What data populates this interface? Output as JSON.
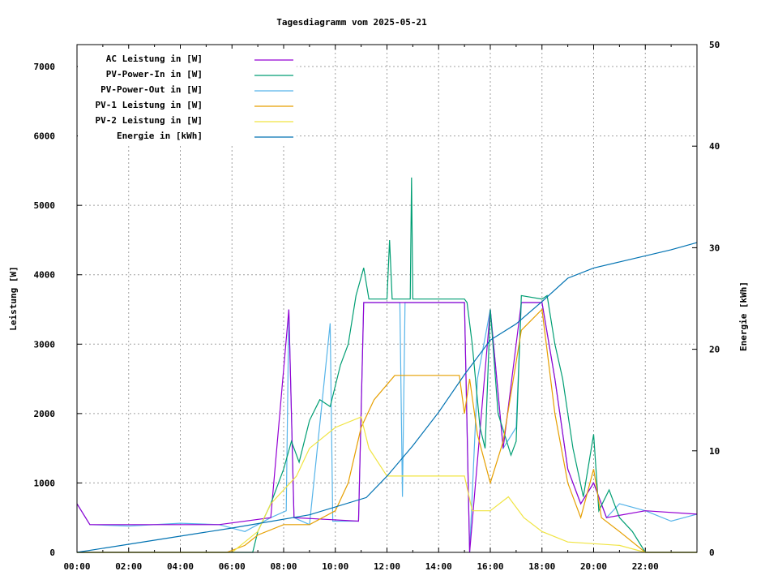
{
  "chart_data": {
    "type": "line",
    "title": "Tagesdiagramm vom 2025-05-21",
    "ylabel": "Leistung [W]",
    "y2label": "Energie [kWh]",
    "xlim": [
      "00:00",
      "24:00"
    ],
    "ylim": [
      0,
      7316
    ],
    "y2lim": [
      0,
      50
    ],
    "grid": true,
    "legend_position": "top-left",
    "xticks": [
      "00:00",
      "02:00",
      "04:00",
      "06:00",
      "08:00",
      "10:00",
      "12:00",
      "14:00",
      "16:00",
      "18:00",
      "20:00",
      "22:00"
    ],
    "yticks": [
      0,
      1000,
      2000,
      3000,
      4000,
      5000,
      6000,
      7000
    ],
    "y2ticks": [
      0,
      10,
      20,
      30,
      40,
      50
    ],
    "series": [
      {
        "name": "AC Leistung in [W]",
        "color": "#9400d3",
        "axis": "y",
        "points": [
          [
            0,
            700
          ],
          [
            0.5,
            400
          ],
          [
            5.5,
            400
          ],
          [
            7.5,
            500
          ],
          [
            8.2,
            3500
          ],
          [
            8.4,
            500
          ],
          [
            10.9,
            450
          ],
          [
            11.1,
            3600
          ],
          [
            15,
            3600
          ],
          [
            15.2,
            0
          ],
          [
            16,
            3500
          ],
          [
            16.5,
            1500
          ],
          [
            17.2,
            3600
          ],
          [
            18,
            3600
          ],
          [
            18.5,
            2500
          ],
          [
            19,
            1200
          ],
          [
            19.5,
            700
          ],
          [
            20,
            1000
          ],
          [
            20.5,
            500
          ],
          [
            22,
            600
          ],
          [
            24,
            550
          ]
        ]
      },
      {
        "name": "PV-Power-In in [W]",
        "color": "#009e73",
        "axis": "y",
        "points": [
          [
            0,
            0
          ],
          [
            6.8,
            0
          ],
          [
            7,
            300
          ],
          [
            7.5,
            700
          ],
          [
            8,
            1200
          ],
          [
            8.3,
            1600
          ],
          [
            8.6,
            1300
          ],
          [
            9,
            1900
          ],
          [
            9.4,
            2200
          ],
          [
            9.8,
            2100
          ],
          [
            10.2,
            2700
          ],
          [
            10.5,
            3000
          ],
          [
            10.8,
            3700
          ],
          [
            11.1,
            4100
          ],
          [
            11.3,
            3650
          ],
          [
            12,
            3650
          ],
          [
            12.1,
            4500
          ],
          [
            12.2,
            3650
          ],
          [
            12.9,
            3650
          ],
          [
            12.95,
            5400
          ],
          [
            13.0,
            3650
          ],
          [
            15,
            3650
          ],
          [
            15.1,
            3600
          ],
          [
            15.3,
            3000
          ],
          [
            15.6,
            1800
          ],
          [
            15.8,
            1500
          ],
          [
            16,
            3500
          ],
          [
            16.3,
            2000
          ],
          [
            16.8,
            1400
          ],
          [
            17,
            1600
          ],
          [
            17.2,
            3700
          ],
          [
            18,
            3650
          ],
          [
            18.2,
            3700
          ],
          [
            18.5,
            3000
          ],
          [
            18.8,
            2500
          ],
          [
            19.2,
            1500
          ],
          [
            19.6,
            800
          ],
          [
            20,
            1700
          ],
          [
            20.2,
            600
          ],
          [
            20.6,
            900
          ],
          [
            21,
            500
          ],
          [
            21.5,
            300
          ],
          [
            22,
            0
          ],
          [
            24,
            0
          ]
        ]
      },
      {
        "name": "PV-Power-Out in [W]",
        "color": "#56b4e9",
        "axis": "y",
        "points": [
          [
            0,
            700
          ],
          [
            0.5,
            400
          ],
          [
            2,
            380
          ],
          [
            4,
            420
          ],
          [
            5.5,
            400
          ],
          [
            6.5,
            300
          ],
          [
            7.5,
            500
          ],
          [
            8.1,
            600
          ],
          [
            8.2,
            3500
          ],
          [
            8.4,
            500
          ],
          [
            9,
            400
          ],
          [
            9.8,
            3300
          ],
          [
            9.9,
            450
          ],
          [
            10.9,
            450
          ],
          [
            11.1,
            3600
          ],
          [
            12.5,
            3600
          ],
          [
            12.6,
            800
          ],
          [
            12.7,
            3600
          ],
          [
            15,
            3600
          ],
          [
            15.2,
            0
          ],
          [
            15.5,
            2500
          ],
          [
            16,
            3500
          ],
          [
            16.5,
            1500
          ],
          [
            17,
            1800
          ],
          [
            17.2,
            3600
          ],
          [
            18,
            3600
          ],
          [
            18.5,
            2500
          ],
          [
            19,
            1200
          ],
          [
            19.5,
            700
          ],
          [
            20,
            1000
          ],
          [
            20.5,
            500
          ],
          [
            21,
            700
          ],
          [
            22,
            600
          ],
          [
            23,
            450
          ],
          [
            24,
            550
          ]
        ]
      },
      {
        "name": "PV-1 Leistung in [W]",
        "color": "#e69f00",
        "axis": "y",
        "points": [
          [
            0,
            0
          ],
          [
            5.8,
            0
          ],
          [
            6.5,
            100
          ],
          [
            7,
            250
          ],
          [
            8,
            400
          ],
          [
            9,
            400
          ],
          [
            10,
            600
          ],
          [
            10.5,
            1000
          ],
          [
            11,
            1800
          ],
          [
            11.5,
            2200
          ],
          [
            12.3,
            2550
          ],
          [
            14.8,
            2550
          ],
          [
            15,
            2000
          ],
          [
            15.2,
            2500
          ],
          [
            15.5,
            1700
          ],
          [
            16,
            1000
          ],
          [
            16.5,
            1600
          ],
          [
            17.2,
            3200
          ],
          [
            18,
            3500
          ],
          [
            18.5,
            2000
          ],
          [
            19,
            1000
          ],
          [
            19.5,
            500
          ],
          [
            20,
            1200
          ],
          [
            20.3,
            500
          ],
          [
            21,
            300
          ],
          [
            22,
            0
          ],
          [
            24,
            0
          ]
        ]
      },
      {
        "name": "PV-2 Leistung in [W]",
        "color": "#f0e442",
        "axis": "y",
        "points": [
          [
            0,
            0
          ],
          [
            6,
            0
          ],
          [
            7,
            300
          ],
          [
            7.5,
            700
          ],
          [
            8.5,
            1100
          ],
          [
            9,
            1500
          ],
          [
            10,
            1800
          ],
          [
            11,
            1950
          ],
          [
            11.3,
            1500
          ],
          [
            12,
            1100
          ],
          [
            15,
            1100
          ],
          [
            15.3,
            600
          ],
          [
            16,
            600
          ],
          [
            16.7,
            800
          ],
          [
            17.3,
            500
          ],
          [
            18,
            300
          ],
          [
            19,
            150
          ],
          [
            21,
            100
          ],
          [
            22,
            0
          ],
          [
            24,
            0
          ]
        ]
      },
      {
        "name": "Energie in [kWh]",
        "color": "#0072b2",
        "axis": "y2",
        "points": [
          [
            0,
            0
          ],
          [
            3,
            1.2
          ],
          [
            6,
            2.4
          ],
          [
            9,
            3.7
          ],
          [
            11.2,
            5.4
          ],
          [
            12,
            7.5
          ],
          [
            13,
            10.5
          ],
          [
            14,
            13.8
          ],
          [
            15,
            17.5
          ],
          [
            16,
            20.9
          ],
          [
            17,
            22.5
          ],
          [
            18,
            24.7
          ],
          [
            19,
            27
          ],
          [
            20,
            28
          ],
          [
            21,
            28.6
          ],
          [
            22,
            29.2
          ],
          [
            23,
            29.8
          ],
          [
            24,
            30.5
          ]
        ]
      }
    ]
  }
}
